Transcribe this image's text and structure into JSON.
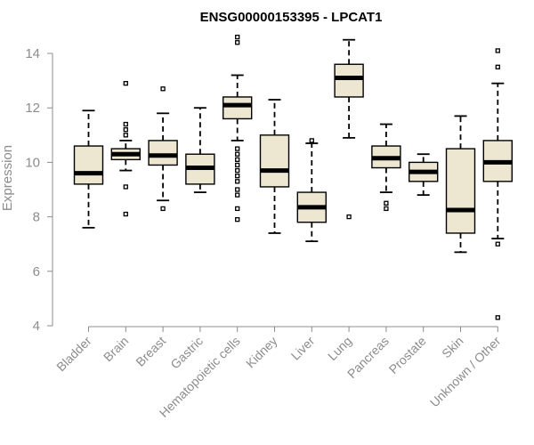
{
  "chart_data": {
    "type": "box",
    "title": "ENSG00000153395 - LPCAT1",
    "xlabel": "",
    "ylabel": "Expression",
    "ylim": [
      4,
      14
    ],
    "yticks": [
      4,
      6,
      8,
      10,
      12,
      14
    ],
    "grid": false,
    "box_color": "#ede6d0",
    "axis_color": "#8c8c8c",
    "categories": [
      "Bladder",
      "Brain",
      "Breast",
      "Gastric",
      "Hematopoietic cells",
      "Kidney",
      "Liver",
      "Lung",
      "Pancreas",
      "Prostate",
      "Skin",
      "Unknown / Other"
    ],
    "boxes": [
      {
        "name": "Bladder",
        "whisker_low": 7.6,
        "q1": 9.2,
        "median": 9.6,
        "q3": 10.6,
        "whisker_high": 11.9,
        "outliers": []
      },
      {
        "name": "Brain",
        "whisker_low": 9.7,
        "q1": 10.1,
        "median": 10.3,
        "q3": 10.5,
        "whisker_high": 10.8,
        "outliers": [
          12.9,
          11.4,
          11.2,
          11.0,
          9.1,
          8.1
        ]
      },
      {
        "name": "Breast",
        "whisker_low": 8.6,
        "q1": 9.9,
        "median": 10.25,
        "q3": 10.8,
        "whisker_high": 11.8,
        "outliers": [
          12.7,
          8.3
        ]
      },
      {
        "name": "Gastric",
        "whisker_low": 8.9,
        "q1": 9.2,
        "median": 9.8,
        "q3": 10.3,
        "whisker_high": 12.0,
        "outliers": []
      },
      {
        "name": "Hematopoietic cells",
        "whisker_low": 10.8,
        "q1": 11.6,
        "median": 12.1,
        "q3": 12.4,
        "whisker_high": 13.2,
        "outliers": [
          14.6,
          14.4,
          10.5,
          10.3,
          10.1,
          9.9,
          9.7,
          9.5,
          9.3,
          9.0,
          8.8,
          8.3,
          7.9
        ]
      },
      {
        "name": "Kidney",
        "whisker_low": 7.4,
        "q1": 9.1,
        "median": 9.7,
        "q3": 11.0,
        "whisker_high": 12.3,
        "outliers": []
      },
      {
        "name": "Liver",
        "whisker_low": 7.1,
        "q1": 7.8,
        "median": 8.35,
        "q3": 8.9,
        "whisker_high": 10.7,
        "outliers": [
          10.8
        ]
      },
      {
        "name": "Lung",
        "whisker_low": 10.9,
        "q1": 12.4,
        "median": 13.1,
        "q3": 13.6,
        "whisker_high": 14.5,
        "outliers": [
          8.0
        ]
      },
      {
        "name": "Pancreas",
        "whisker_low": 8.9,
        "q1": 9.8,
        "median": 10.15,
        "q3": 10.6,
        "whisker_high": 11.4,
        "outliers": [
          8.5,
          8.3
        ]
      },
      {
        "name": "Prostate",
        "whisker_low": 8.8,
        "q1": 9.3,
        "median": 9.65,
        "q3": 10.0,
        "whisker_high": 10.3,
        "outliers": []
      },
      {
        "name": "Skin",
        "whisker_low": 6.7,
        "q1": 7.4,
        "median": 8.25,
        "q3": 10.5,
        "whisker_high": 11.7,
        "outliers": []
      },
      {
        "name": "Unknown / Other",
        "whisker_low": 7.2,
        "q1": 9.3,
        "median": 10.0,
        "q3": 10.8,
        "whisker_high": 12.9,
        "outliers": [
          14.1,
          13.5,
          7.0,
          4.3
        ]
      }
    ]
  }
}
